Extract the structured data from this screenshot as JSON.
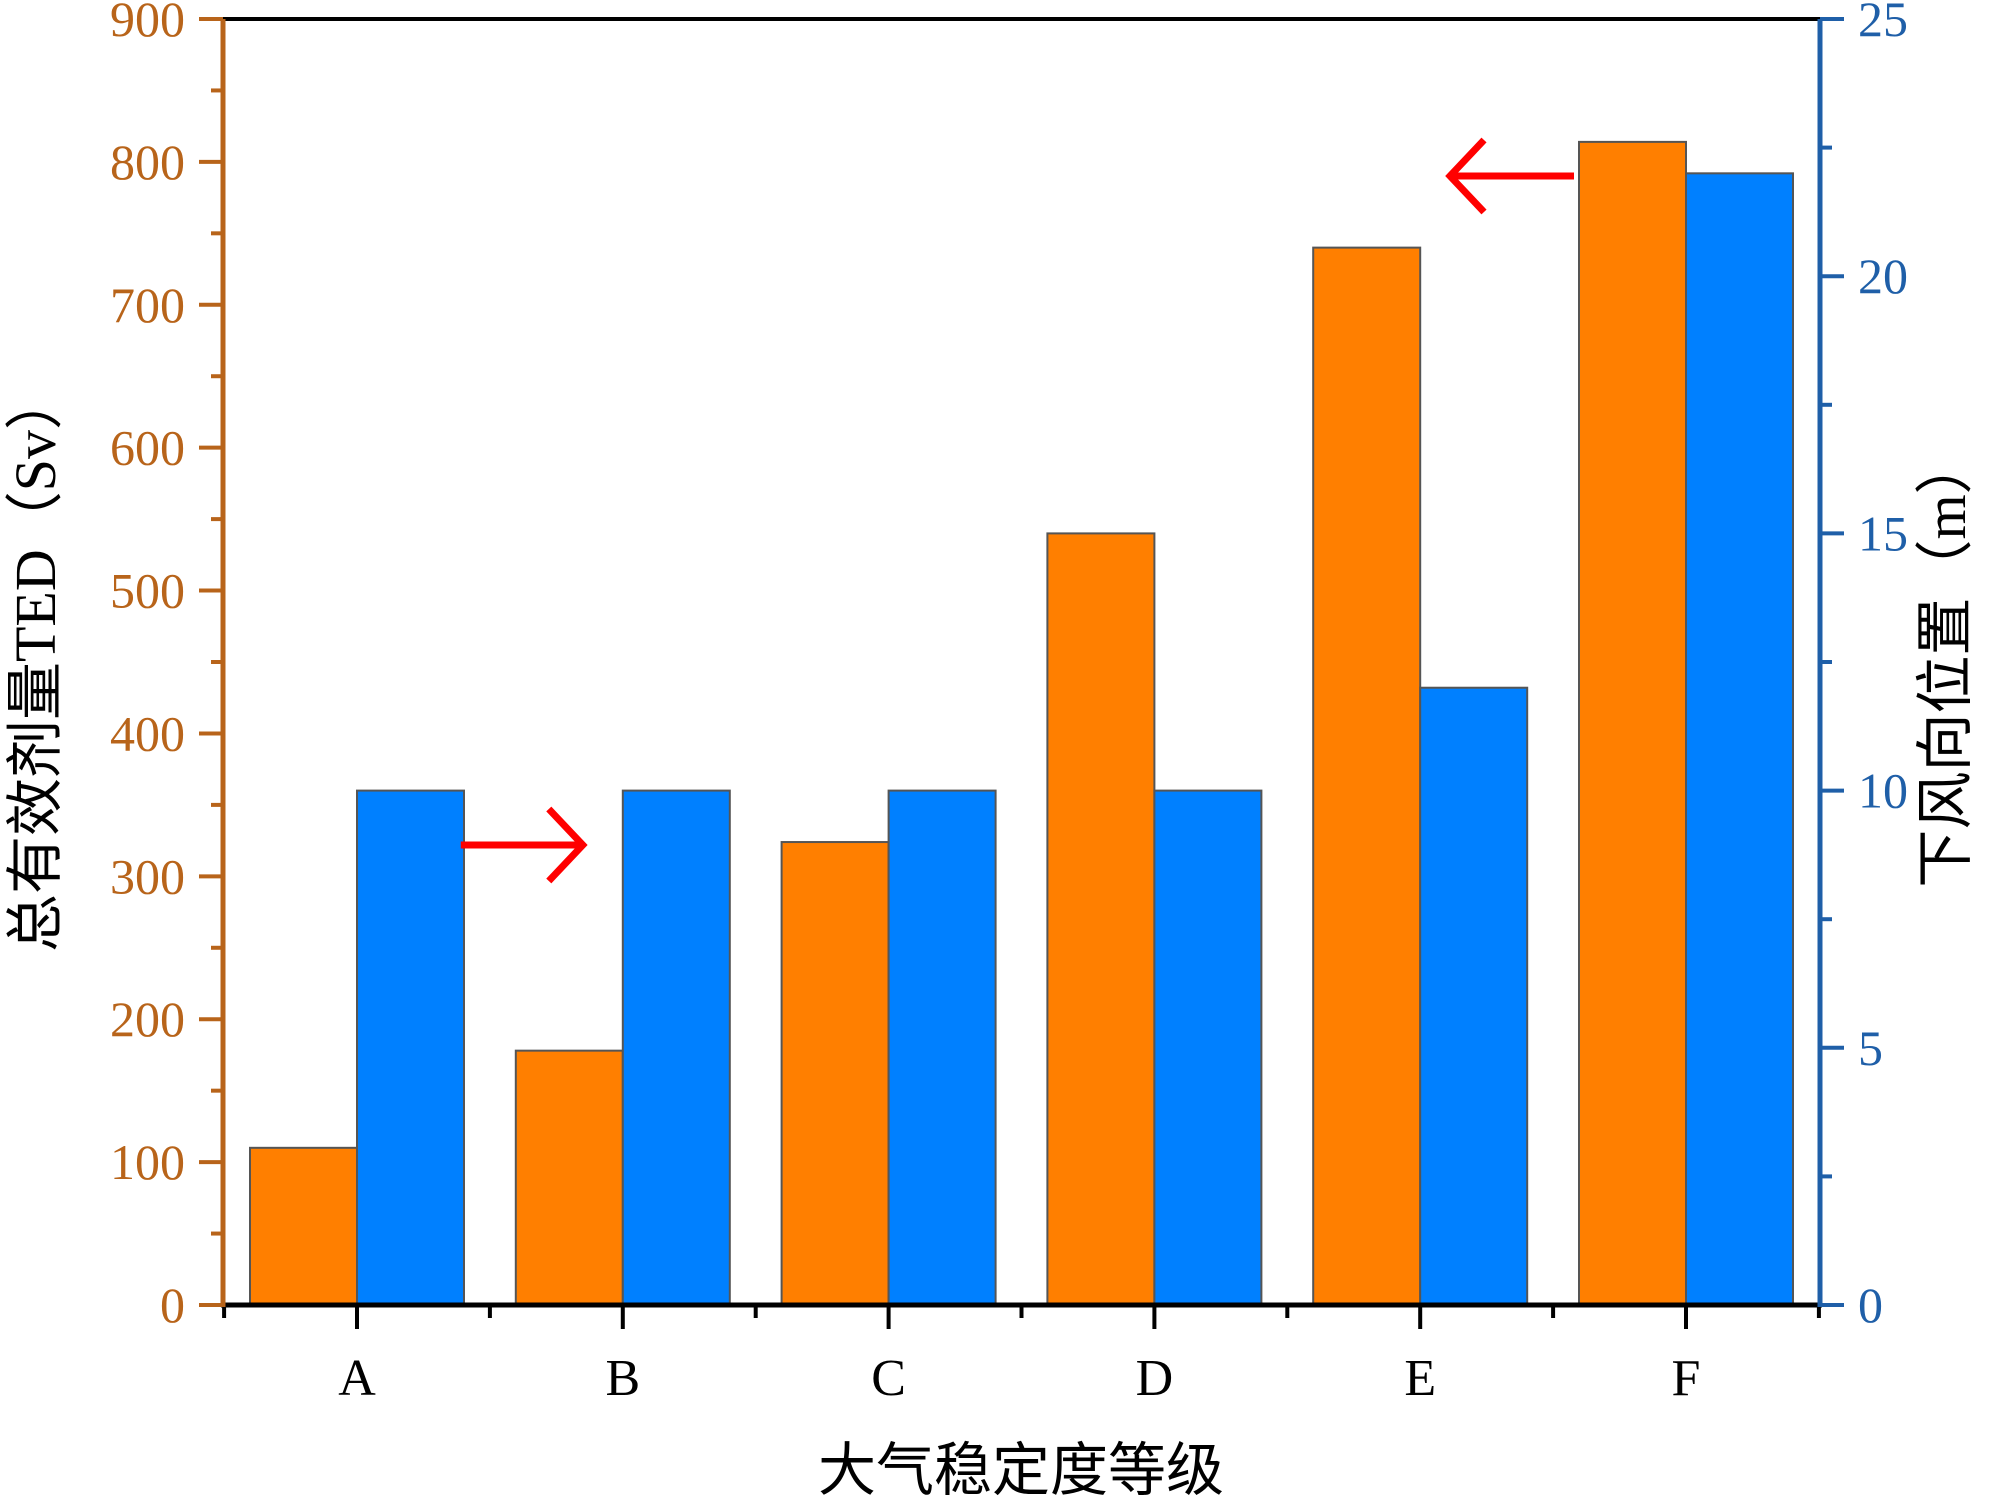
{
  "chart_data": {
    "type": "bar",
    "title": "",
    "xlabel": "大气稳定度等级",
    "ylabel_left": "总有效剂量TED（Sv）",
    "ylabel_right": "下风向位置（m）",
    "categories": [
      "A",
      "B",
      "C",
      "D",
      "E",
      "F"
    ],
    "series": [
      {
        "axis": "left",
        "color": "#ff7f00",
        "values": [
          110,
          178,
          324,
          540,
          740,
          814
        ]
      },
      {
        "axis": "right",
        "color": "#0080ff",
        "values": [
          10,
          10,
          10,
          10,
          12,
          22
        ]
      }
    ],
    "ylim_left": [
      0,
      900
    ],
    "yticks_left": [
      "0",
      "100",
      "200",
      "300",
      "400",
      "500",
      "600",
      "700",
      "800",
      "900"
    ],
    "ylim_right": [
      0,
      25
    ],
    "yticks_right": [
      "0",
      "5",
      "10",
      "15",
      "20",
      "25"
    ],
    "grid": false,
    "legend": "none",
    "annotations": [
      {
        "type": "arrow",
        "direction": "right",
        "category": "B",
        "color": "#ff0000"
      },
      {
        "type": "arrow",
        "direction": "left",
        "category": "F",
        "color": "#ff0000"
      }
    ],
    "colors": {
      "left_axis": "#b8641a",
      "right_axis": "#1f5fa8",
      "bar_edge": "#555555"
    }
  }
}
